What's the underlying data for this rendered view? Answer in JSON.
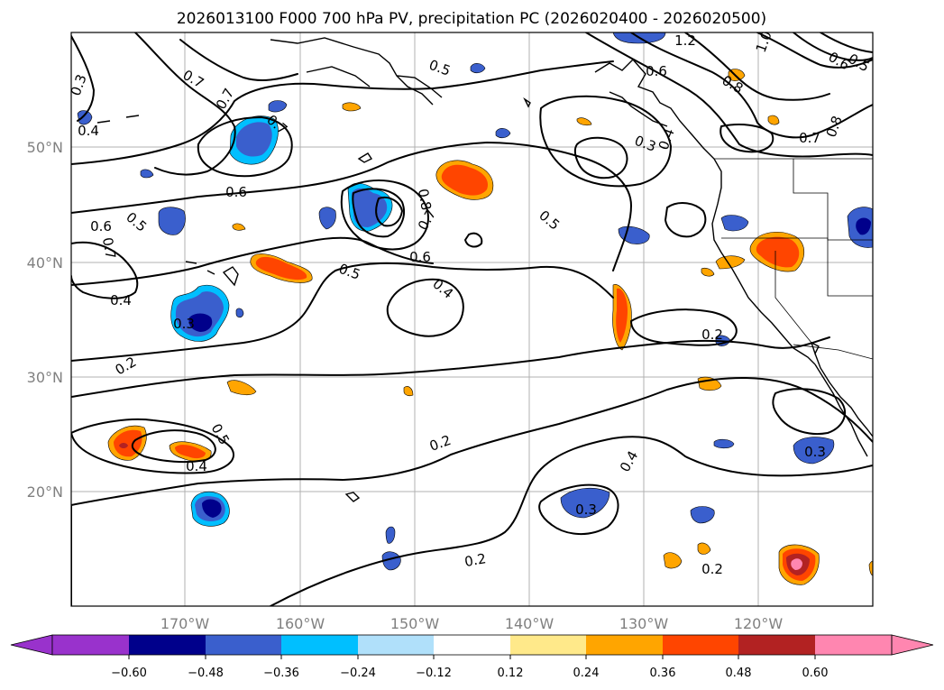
{
  "title": "2026013100 F000 700 hPa PV, precipitation PC (2026020400 - 2026020500)",
  "colors": {
    "gridline": "#b0b0b0",
    "axis_label": "#808080",
    "contour": "#000000"
  },
  "map": {
    "lon_labels": [
      "170°W",
      "160°W",
      "150°W",
      "140°W",
      "130°W",
      "120°W"
    ],
    "lat_labels": [
      "50°N",
      "40°N",
      "30°N",
      "20°N"
    ],
    "contour_labels": {
      "l03a": "0.3",
      "l04a": "0.4",
      "l07a": "0.7",
      "l07b": "0.7",
      "l07c": "0.7",
      "l05a": "0.5",
      "l12": "1.2",
      "l06a": "0.6",
      "l10": "1.0",
      "l06b": "0.6",
      "l05b": "0.5",
      "l08a": "0.8",
      "l03b": "0.3",
      "l04b": "0.4",
      "l07d": "0.7",
      "l08b": "0.8",
      "l06c": "0.6",
      "l08c": "0.8",
      "l07e": "0.7",
      "l05c": "0.5",
      "l06d": "0.6",
      "l05d": "0.5",
      "l06e": "0.6",
      "l05e": "0.5",
      "l07f": "0.7",
      "l04c": "0.4",
      "l04d": "0.4",
      "l03c": "0.3",
      "l02a": "0.2",
      "l05f": "0.5",
      "l04e": "0.4",
      "l02b": "0.2",
      "l04f": "0.4",
      "l03d": "0.3",
      "l02c": "0.2",
      "l02d": "0.2",
      "l02e": "0.2",
      "l03e": "0.3"
    }
  },
  "colorbar": {
    "ticks": [
      "−0.60",
      "−0.48",
      "−0.36",
      "−0.24",
      "−0.12",
      "0.12",
      "0.24",
      "0.36",
      "0.48",
      "0.60"
    ],
    "colors": [
      "#9932cc",
      "#00008b",
      "#3a5fcd",
      "#00bfff",
      "#b0e0fa",
      "#ffffff",
      "#ffe98a",
      "#ffa500",
      "#ff4500",
      "#b22222",
      "#ff86b0"
    ]
  }
}
